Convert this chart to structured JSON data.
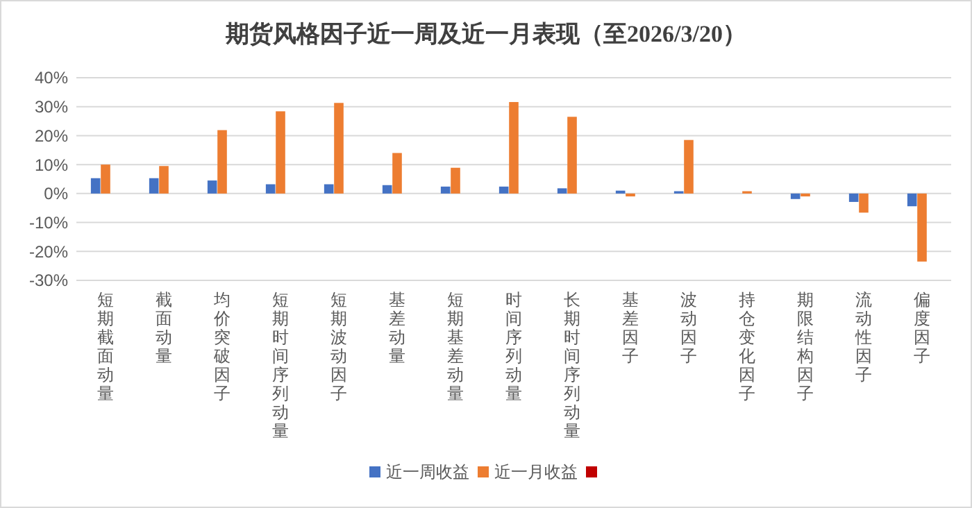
{
  "chart_data": {
    "type": "bar",
    "title": "期货风格因子近一周及近一月表现（至2026/3/20）",
    "categories": [
      "短期截面动量",
      "截面动量",
      "均价突破因子",
      "短期时间序列动量",
      "短期波动因子",
      "基差动量",
      "短期基差动量",
      "时间序列动量",
      "长期时间序列动量",
      "基差因子",
      "波动因子",
      "持仓变化因子",
      "期限结构因子",
      "流动性因子",
      "偏度因子"
    ],
    "series": [
      {
        "name": "近一周收益",
        "color": "#4472c4",
        "values": [
          5.3,
          5.3,
          4.5,
          3.2,
          3.2,
          2.9,
          2.4,
          2.4,
          1.8,
          1.0,
          0.8,
          0,
          -1.9,
          -2.9,
          -4.4
        ]
      },
      {
        "name": "近一月收益",
        "color": "#ed7d31",
        "values": [
          10.0,
          9.5,
          21.9,
          28.4,
          31.3,
          14.0,
          8.9,
          31.6,
          26.5,
          -1.0,
          18.5,
          0.8,
          -1.0,
          -6.6,
          -23.5
        ]
      },
      {
        "color": "#c00000",
        "values": [
          null,
          null,
          null,
          null,
          null,
          null,
          null,
          null,
          null,
          null,
          null,
          null,
          null,
          null,
          null
        ]
      }
    ],
    "ylim": [
      -30,
      40
    ],
    "yticks": [
      {
        "value": -30,
        "label": "-30%"
      },
      {
        "value": -20,
        "label": "-20%"
      },
      {
        "value": -10,
        "label": "-10%"
      },
      {
        "value": 0,
        "label": "0%"
      },
      {
        "value": 10,
        "label": "10%"
      },
      {
        "value": 20,
        "label": "20%"
      },
      {
        "value": 30,
        "label": "30%"
      },
      {
        "value": 40,
        "label": "40%"
      }
    ],
    "grid": "y",
    "legend": "bottom"
  }
}
